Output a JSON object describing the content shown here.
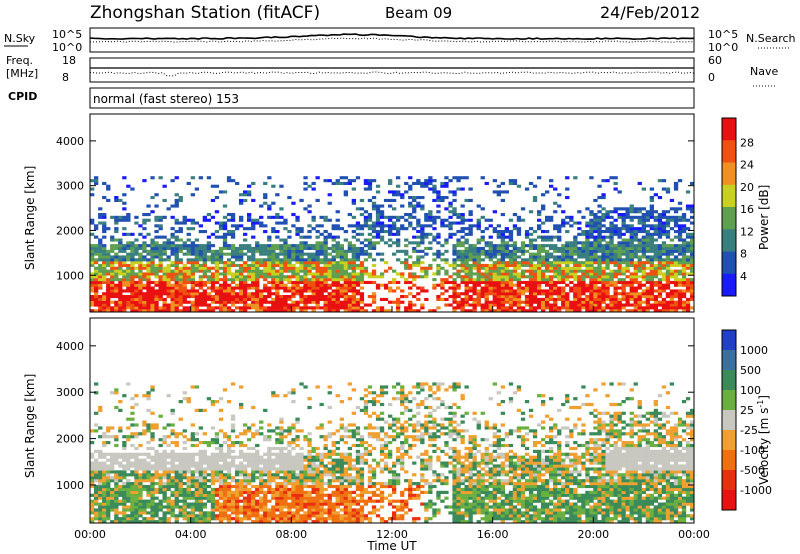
{
  "header": {
    "station_title": "Zhongshan Station (fitACF)",
    "beam": "Beam 09",
    "date": "24/Feb/2012"
  },
  "top_panels": {
    "nsky_label": "N.Sky",
    "nsearch_label": "N.Search",
    "noise_ticks_left": [
      "10^5",
      "10^0"
    ],
    "noise_ticks_right": [
      "10^5",
      "10^0"
    ],
    "freq_label_1": "Freq.",
    "freq_label_2": "[MHz]",
    "freq_ticks": [
      "18",
      "8"
    ],
    "nave_label": "Nave",
    "nave_ticks": [
      "60",
      "0"
    ],
    "cpid_label": "CPID",
    "cpid_text": "normal (fast stereo) 153"
  },
  "chart_data": [
    {
      "type": "heatmap",
      "name": "power",
      "ylabel": "Slant Range [km]",
      "yticks": [
        "1000",
        "2000",
        "3000",
        "4000"
      ],
      "ylim": [
        180,
        4600
      ],
      "colorbar_label": "Power [dB]",
      "colorbar_ticks": [
        "4",
        "8",
        "12",
        "16",
        "20",
        "24",
        "28"
      ],
      "colors": [
        "#1a1aff",
        "#2050b0",
        "#3a7f80",
        "#5fa050",
        "#c8d020",
        "#f09020",
        "#f05010",
        "#e81010"
      ]
    },
    {
      "type": "heatmap",
      "name": "velocity",
      "ylabel": "Slant Range [km]",
      "yticks": [
        "1000",
        "2000",
        "3000",
        "4000"
      ],
      "ylim": [
        180,
        4600
      ],
      "xlabel": "Time UT",
      "xticks": [
        "00:00",
        "04:00",
        "08:00",
        "12:00",
        "16:00",
        "20:00",
        "00:00"
      ],
      "colorbar_label": "Velocity [m s",
      "colorbar_label_sup": "-1",
      "colorbar_label_end": "]",
      "colorbar_ticks": [
        "1000",
        "500",
        "100",
        "25",
        "-25",
        "-100",
        "-500",
        "-1000"
      ],
      "colors": [
        "#2040c8",
        "#3a70a0",
        "#3a8a5a",
        "#6ab040",
        "#c8c8c0",
        "#f0a030",
        "#f07010",
        "#e83010",
        "#e81010"
      ]
    }
  ]
}
